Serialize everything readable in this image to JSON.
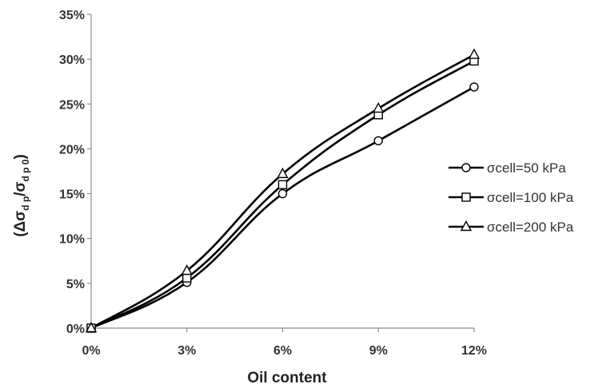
{
  "chart_data": {
    "type": "line",
    "x": [
      "0%",
      "3%",
      "6%",
      "9%",
      "12%"
    ],
    "x_values": [
      0,
      3,
      6,
      9,
      12
    ],
    "xlabel": "Oil content",
    "ylabel": {
      "prefix": "(Δσ",
      "sub1": "d p",
      "mid": "/σ",
      "sub2": "d p 0",
      "suffix": ")"
    },
    "ylim": [
      0,
      35
    ],
    "yticks": [
      0,
      5,
      10,
      15,
      20,
      25,
      30,
      35
    ],
    "ytick_labels": [
      "0%",
      "5%",
      "10%",
      "15%",
      "20%",
      "25%",
      "30%",
      "35%"
    ],
    "xlim": [
      0,
      12
    ],
    "grid": false,
    "legend_position": "right",
    "line_color": "#000000",
    "series": [
      {
        "name": "σcell=50 kPa",
        "marker": "circle",
        "values": [
          0,
          5.1,
          15.0,
          20.9,
          26.9
        ]
      },
      {
        "name": "σcell=100 kPa",
        "marker": "square",
        "values": [
          0,
          5.6,
          16.0,
          23.8,
          29.8
        ]
      },
      {
        "name": "σcell=200 kPa",
        "marker": "triangle",
        "values": [
          0,
          6.4,
          17.2,
          24.5,
          30.5
        ]
      }
    ]
  }
}
